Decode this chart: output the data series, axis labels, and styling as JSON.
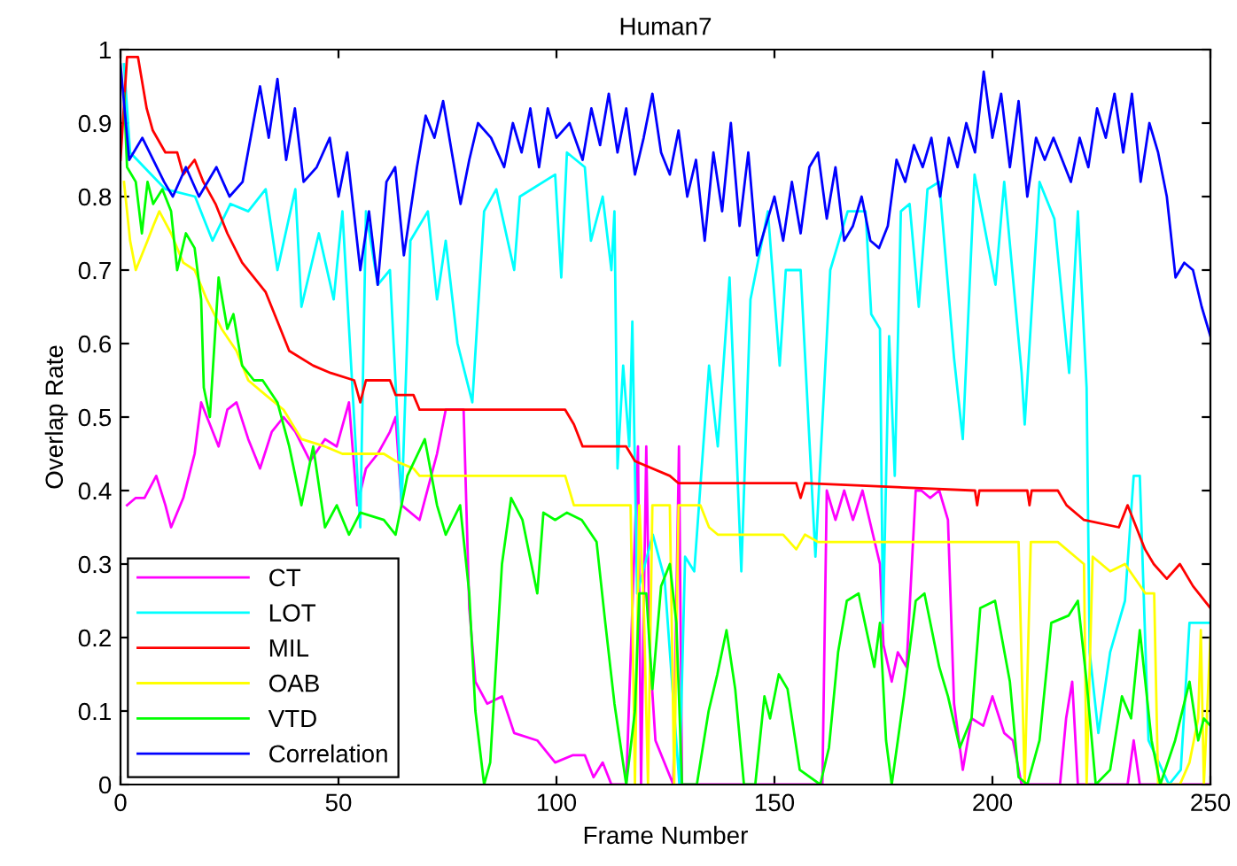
{
  "chart_data": {
    "type": "line",
    "title": "Human7",
    "xlabel": "Frame Number",
    "ylabel": "Overlap Rate",
    "xlim": [
      0,
      250
    ],
    "xticks": [
      0,
      50,
      100,
      150,
      200,
      250
    ],
    "ylim": [
      0,
      1
    ],
    "yticks": [
      0,
      0.1,
      0.2,
      0.3,
      0.4,
      0.5,
      0.6,
      0.7,
      0.8,
      0.9,
      1
    ],
    "grid": false,
    "legend": "bottom left",
    "marker": "none",
    "line_style": "solid",
    "series": [
      {
        "name": "CT",
        "color": "#ff00ff",
        "x": [
          1.5,
          3.5,
          5.5,
          8.2,
          10.3,
          11.6,
          14.4,
          17,
          18.5,
          20.5,
          22.5,
          24.5,
          26.6,
          29.3,
          32,
          34.7,
          37.4,
          40.1,
          43.5,
          46.9,
          49.6,
          52.4,
          54.3,
          56.3,
          59,
          61.8,
          63.1,
          64.5,
          68.6,
          72.6,
          74.6,
          78.7,
          80,
          81.4,
          84.1,
          87.5,
          90.3,
          95.6,
          99.7,
          103.8,
          106.5,
          108.5,
          110.6,
          112.6,
          116,
          118.7,
          119.4,
          120.6,
          121.4,
          122.7,
          126.8,
          128.1,
          128.8,
          161,
          162,
          164,
          166,
          168,
          170.2,
          174.2,
          175,
          176.9,
          178.3,
          180.3,
          182.4,
          183.7,
          185.7,
          187.8,
          189.8,
          191.2,
          193.2,
          195.2,
          197.9,
          200,
          202.7,
          204.7,
          206.7,
          215.5,
          216.9,
          218.3,
          219.6,
          231,
          232.4,
          233.8,
          250
        ],
        "values": [
          0.38,
          0.39,
          0.39,
          0.42,
          0.38,
          0.35,
          0.39,
          0.45,
          0.52,
          0.49,
          0.46,
          0.51,
          0.52,
          0.47,
          0.43,
          0.48,
          0.5,
          0.48,
          0.44,
          0.47,
          0.46,
          0.52,
          0.38,
          0.43,
          0.45,
          0.48,
          0.5,
          0.38,
          0.36,
          0.45,
          0.51,
          0.51,
          0.24,
          0.14,
          0.11,
          0.12,
          0.07,
          0.06,
          0.03,
          0.04,
          0.04,
          0.01,
          0.03,
          0,
          0,
          0.46,
          0,
          0.46,
          0.18,
          0.06,
          0,
          0.46,
          0,
          0,
          0.4,
          0.36,
          0.4,
          0.36,
          0.4,
          0.3,
          0.19,
          0.14,
          0.18,
          0.16,
          0.4,
          0.4,
          0.39,
          0.4,
          0.36,
          0.11,
          0.02,
          0.09,
          0.08,
          0.12,
          0.07,
          0.06,
          0,
          0,
          0.09,
          0.14,
          0,
          0,
          0.06,
          0,
          0
        ]
      },
      {
        "name": "LOT",
        "color": "#00ffff",
        "x": [
          0.8,
          2.2,
          10.3,
          17.1,
          21.1,
          25.2,
          29.3,
          33.3,
          36,
          40.1,
          41.5,
          45.5,
          48.9,
          50.9,
          55,
          56.3,
          59,
          61.8,
          64.5,
          66.5,
          70.5,
          72.6,
          74.6,
          77.3,
          80.7,
          83.4,
          86.2,
          90.3,
          91.6,
          99.7,
          101.1,
          102.4,
          106.5,
          107.9,
          110.6,
          112.6,
          113.3,
          114,
          115.3,
          116.7,
          117.4,
          118.5,
          122.1,
          124.8,
          128.2,
          129.5,
          131.6,
          135,
          137,
          139.7,
          142.4,
          144.5,
          148.5,
          151.2,
          152.6,
          156,
          159.4,
          162.8,
          166.8,
          170.9,
          172.2,
          174.2,
          174.9,
          176.3,
          177.6,
          179,
          181,
          183.1,
          185.1,
          187.8,
          191.2,
          193.2,
          195.9,
          200.7,
          202.7,
          206.7,
          207.4,
          210.8,
          214.2,
          217.6,
          219.6,
          221.6,
          222.3,
          224.3,
          227,
          230.4,
          232.4,
          233.8,
          235.8,
          240.5,
          243.2,
          245.2,
          247.2,
          249.7
        ],
        "values": [
          0.98,
          0.86,
          0.81,
          0.8,
          0.74,
          0.79,
          0.78,
          0.81,
          0.7,
          0.81,
          0.65,
          0.75,
          0.66,
          0.78,
          0.35,
          0.78,
          0.68,
          0.7,
          0.38,
          0.74,
          0.78,
          0.66,
          0.74,
          0.6,
          0.52,
          0.78,
          0.81,
          0.7,
          0.8,
          0.83,
          0.69,
          0.86,
          0.84,
          0.74,
          0.8,
          0.7,
          0.78,
          0.43,
          0.57,
          0.46,
          0.63,
          0.26,
          0.34,
          0.28,
          0,
          0.31,
          0.29,
          0.57,
          0.46,
          0.69,
          0.29,
          0.66,
          0.78,
          0.57,
          0.7,
          0.7,
          0.31,
          0.7,
          0.78,
          0.78,
          0.64,
          0.62,
          0.22,
          0.61,
          0.42,
          0.78,
          0.79,
          0.65,
          0.81,
          0.82,
          0.58,
          0.47,
          0.83,
          0.68,
          0.82,
          0.56,
          0.49,
          0.82,
          0.77,
          0.56,
          0.78,
          0.54,
          0.18,
          0.07,
          0.18,
          0.25,
          0.42,
          0.42,
          0.06,
          0,
          0.02,
          0.22,
          0.22,
          0.22
        ]
      },
      {
        "name": "MIL",
        "color": "#ff0000",
        "x": [
          0,
          1.5,
          4,
          6,
          7.4,
          10.3,
          13,
          14.4,
          17,
          19,
          21.8,
          24.5,
          27.9,
          33.3,
          36,
          38.7,
          44.2,
          48.2,
          53.6,
          55,
          56.3,
          61.8,
          63.1,
          67.2,
          68.6,
          102,
          104,
          106,
          116,
          118,
          126,
          128,
          155,
          156,
          157,
          196,
          196.5,
          197,
          208,
          208.5,
          209,
          215,
          217,
          221,
          229,
          231,
          235,
          237,
          240,
          243,
          246,
          250
        ],
        "values": [
          0.85,
          0.99,
          0.99,
          0.92,
          0.89,
          0.86,
          0.86,
          0.83,
          0.85,
          0.82,
          0.79,
          0.75,
          0.71,
          0.67,
          0.63,
          0.59,
          0.57,
          0.56,
          0.55,
          0.52,
          0.55,
          0.55,
          0.53,
          0.53,
          0.51,
          0.51,
          0.49,
          0.46,
          0.46,
          0.44,
          0.42,
          0.41,
          0.41,
          0.39,
          0.41,
          0.4,
          0.38,
          0.4,
          0.4,
          0.38,
          0.4,
          0.4,
          0.38,
          0.36,
          0.35,
          0.38,
          0.32,
          0.3,
          0.28,
          0.3,
          0.27,
          0.24
        ]
      },
      {
        "name": "OAB",
        "color": "#ffff00",
        "x": [
          0.8,
          2.2,
          3.5,
          6.2,
          7.5,
          8.9,
          11.6,
          14.4,
          17,
          19.8,
          23.2,
          26.6,
          29.3,
          33.3,
          37.4,
          41.5,
          46.9,
          50.9,
          60.4,
          63.1,
          67.2,
          68.6,
          102,
          104,
          117,
          117.5,
          118,
          119,
          120,
          121,
          122,
          126,
          126.5,
          127,
          128,
          133,
          135,
          137,
          152,
          155,
          157,
          160,
          206,
          207.4,
          208.8,
          215,
          219,
          221,
          221.6,
          223,
          227,
          230.4,
          235.1,
          237.1,
          238,
          243,
          245.2,
          247.2,
          247.8,
          248.5,
          250
        ],
        "values": [
          0.82,
          0.74,
          0.7,
          0.74,
          0.76,
          0.78,
          0.75,
          0.71,
          0.7,
          0.66,
          0.62,
          0.59,
          0.55,
          0.53,
          0.51,
          0.47,
          0.46,
          0.45,
          0.45,
          0.44,
          0.43,
          0.42,
          0.42,
          0.38,
          0.38,
          0.2,
          0,
          0.38,
          0.25,
          0,
          0.38,
          0.38,
          0.2,
          0,
          0.38,
          0.38,
          0.35,
          0.34,
          0.34,
          0.32,
          0.34,
          0.33,
          0.33,
          0,
          0.33,
          0.33,
          0.31,
          0.3,
          0,
          0.31,
          0.29,
          0.3,
          0.26,
          0.26,
          0,
          0,
          0.03,
          0.09,
          0.21,
          0,
          0.2
        ]
      },
      {
        "name": "VTD",
        "color": "#00ff00",
        "x": [
          0.8,
          1.5,
          3.5,
          4.9,
          6.2,
          7.5,
          9.6,
          11.6,
          13,
          15,
          17,
          18.5,
          19.1,
          20.5,
          22.5,
          24.5,
          25.9,
          27.9,
          30.6,
          32.6,
          36,
          38.7,
          41.5,
          44.2,
          46.9,
          49.6,
          52.4,
          55,
          60.4,
          63.1,
          65.8,
          69.8,
          72.6,
          74.6,
          77.9,
          80,
          81.4,
          83.4,
          84.8,
          87.5,
          89.6,
          92.2,
          95.6,
          97,
          99.7,
          102.4,
          105.8,
          109.2,
          111.2,
          113.3,
          116,
          118,
          119,
          120.6,
          122,
          124,
          126,
          127.5,
          128.8,
          132.2,
          134.9,
          136.9,
          139,
          141,
          143,
          145.6,
          147.7,
          149,
          151,
          153,
          155.8,
          160.5,
          162.5,
          164.6,
          166.6,
          169.3,
          172.9,
          174.2,
          175.6,
          176.9,
          179.7,
          182.4,
          184.4,
          187.8,
          189.8,
          192.5,
          195.2,
          197.2,
          200.6,
          204,
          206,
          208,
          210.8,
          213.5,
          217.5,
          219.6,
          221.6,
          223.7,
          227,
          229.7,
          231.8,
          233.8,
          236.5,
          238.5,
          241.9,
          245.2,
          247.2,
          248.5,
          250
        ],
        "values": [
          0.94,
          0.84,
          0.82,
          0.75,
          0.82,
          0.79,
          0.81,
          0.78,
          0.7,
          0.75,
          0.73,
          0.66,
          0.54,
          0.5,
          0.69,
          0.62,
          0.64,
          0.57,
          0.55,
          0.55,
          0.52,
          0.46,
          0.38,
          0.46,
          0.35,
          0.38,
          0.34,
          0.37,
          0.36,
          0.34,
          0.42,
          0.47,
          0.38,
          0.34,
          0.38,
          0.26,
          0.1,
          0,
          0.03,
          0.3,
          0.39,
          0.36,
          0.26,
          0.37,
          0.36,
          0.37,
          0.36,
          0.33,
          0.22,
          0.11,
          0,
          0.1,
          0.26,
          0.26,
          0.13,
          0.27,
          0.3,
          0.22,
          0,
          0,
          0.1,
          0.15,
          0.21,
          0.13,
          0,
          0,
          0.12,
          0.09,
          0.15,
          0.13,
          0.02,
          0,
          0.05,
          0.18,
          0.25,
          0.26,
          0.16,
          0.22,
          0.06,
          0,
          0.12,
          0.25,
          0.26,
          0.16,
          0.12,
          0.05,
          0.09,
          0.24,
          0.25,
          0.14,
          0.01,
          0,
          0.06,
          0.22,
          0.23,
          0.25,
          0.14,
          0,
          0.02,
          0.12,
          0.09,
          0.21,
          0.06,
          0,
          0.06,
          0.14,
          0.06,
          0.09,
          0.08
        ]
      },
      {
        "name": "Correlation",
        "color": "#0000ff",
        "x": [
          0,
          2,
          5,
          10,
          12,
          15,
          18,
          22,
          25,
          28,
          32,
          34,
          36,
          38,
          40,
          42,
          45,
          48,
          50,
          52,
          55,
          57,
          59,
          61,
          63,
          65,
          68,
          70,
          72,
          74,
          76,
          78,
          80,
          82,
          85,
          88,
          90,
          92,
          94,
          96,
          98,
          100,
          103,
          106,
          108,
          110,
          112,
          114,
          116,
          118,
          120,
          122,
          124,
          126,
          128,
          130,
          132,
          134,
          136,
          138,
          140,
          142,
          144,
          146,
          148,
          150,
          152,
          154,
          156,
          158,
          160,
          162,
          164,
          166,
          168,
          170,
          172,
          174,
          176,
          178,
          180,
          182,
          184,
          186,
          188,
          190,
          192,
          194,
          196,
          198,
          200,
          202,
          204,
          206,
          208,
          210,
          212,
          214,
          216,
          218,
          220,
          222,
          224,
          226,
          228,
          230,
          232,
          234,
          236,
          238,
          240,
          242,
          244,
          246,
          248,
          250
        ],
        "values": [
          0.98,
          0.85,
          0.88,
          0.82,
          0.8,
          0.84,
          0.8,
          0.84,
          0.8,
          0.82,
          0.95,
          0.88,
          0.96,
          0.85,
          0.92,
          0.82,
          0.84,
          0.88,
          0.8,
          0.86,
          0.7,
          0.78,
          0.68,
          0.82,
          0.84,
          0.72,
          0.84,
          0.91,
          0.88,
          0.93,
          0.86,
          0.79,
          0.85,
          0.9,
          0.88,
          0.84,
          0.9,
          0.86,
          0.92,
          0.84,
          0.92,
          0.88,
          0.9,
          0.85,
          0.92,
          0.87,
          0.94,
          0.86,
          0.92,
          0.83,
          0.88,
          0.94,
          0.86,
          0.83,
          0.89,
          0.8,
          0.85,
          0.74,
          0.86,
          0.78,
          0.9,
          0.76,
          0.86,
          0.72,
          0.76,
          0.8,
          0.74,
          0.82,
          0.75,
          0.84,
          0.86,
          0.77,
          0.84,
          0.74,
          0.76,
          0.8,
          0.74,
          0.73,
          0.76,
          0.85,
          0.82,
          0.87,
          0.84,
          0.88,
          0.8,
          0.88,
          0.84,
          0.9,
          0.86,
          0.97,
          0.88,
          0.94,
          0.84,
          0.93,
          0.8,
          0.88,
          0.85,
          0.88,
          0.85,
          0.82,
          0.88,
          0.84,
          0.92,
          0.88,
          0.94,
          0.86,
          0.94,
          0.82,
          0.9,
          0.86,
          0.8,
          0.69,
          0.71,
          0.7,
          0.65,
          0.61
        ]
      }
    ]
  }
}
